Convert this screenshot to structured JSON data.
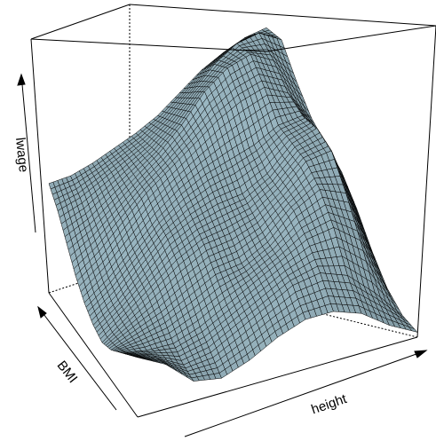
{
  "chart_data": {
    "type": "surface3d",
    "xlabel": "height",
    "ylabel": "BMI",
    "zlabel": "lwage",
    "grid": false,
    "legend": "none",
    "theta_deg": -30,
    "surface": {
      "rows": 11,
      "cols": 11,
      "description_axes": [
        "height",
        "BMI"
      ],
      "z": [
        [
          0.44,
          0.46,
          0.5,
          0.55,
          0.6,
          0.66,
          0.74,
          0.82,
          0.88,
          0.93,
          0.96
        ],
        [
          0.38,
          0.42,
          0.48,
          0.54,
          0.6,
          0.68,
          0.78,
          0.88,
          0.95,
          0.98,
          0.94
        ],
        [
          0.3,
          0.36,
          0.44,
          0.52,
          0.6,
          0.7,
          0.82,
          0.9,
          0.94,
          0.9,
          0.8
        ],
        [
          0.22,
          0.3,
          0.4,
          0.5,
          0.58,
          0.66,
          0.74,
          0.8,
          0.84,
          0.8,
          0.68
        ],
        [
          0.16,
          0.24,
          0.34,
          0.44,
          0.52,
          0.58,
          0.62,
          0.66,
          0.72,
          0.74,
          0.6
        ],
        [
          0.12,
          0.2,
          0.3,
          0.4,
          0.46,
          0.5,
          0.52,
          0.58,
          0.68,
          0.72,
          0.52
        ],
        [
          0.1,
          0.18,
          0.26,
          0.34,
          0.4,
          0.42,
          0.46,
          0.54,
          0.64,
          0.66,
          0.4
        ],
        [
          0.12,
          0.16,
          0.2,
          0.26,
          0.32,
          0.34,
          0.4,
          0.5,
          0.56,
          0.52,
          0.26
        ],
        [
          0.16,
          0.14,
          0.14,
          0.18,
          0.24,
          0.3,
          0.36,
          0.42,
          0.44,
          0.36,
          0.14
        ],
        [
          0.2,
          0.16,
          0.1,
          0.12,
          0.18,
          0.24,
          0.3,
          0.32,
          0.28,
          0.18,
          0.06
        ],
        [
          0.24,
          0.18,
          0.08,
          0.06,
          0.1,
          0.16,
          0.2,
          0.2,
          0.16,
          0.08,
          0.02
        ]
      ]
    },
    "colors": {
      "surface": "#97b3be",
      "mesh": "#000000",
      "box": "#000000"
    }
  }
}
